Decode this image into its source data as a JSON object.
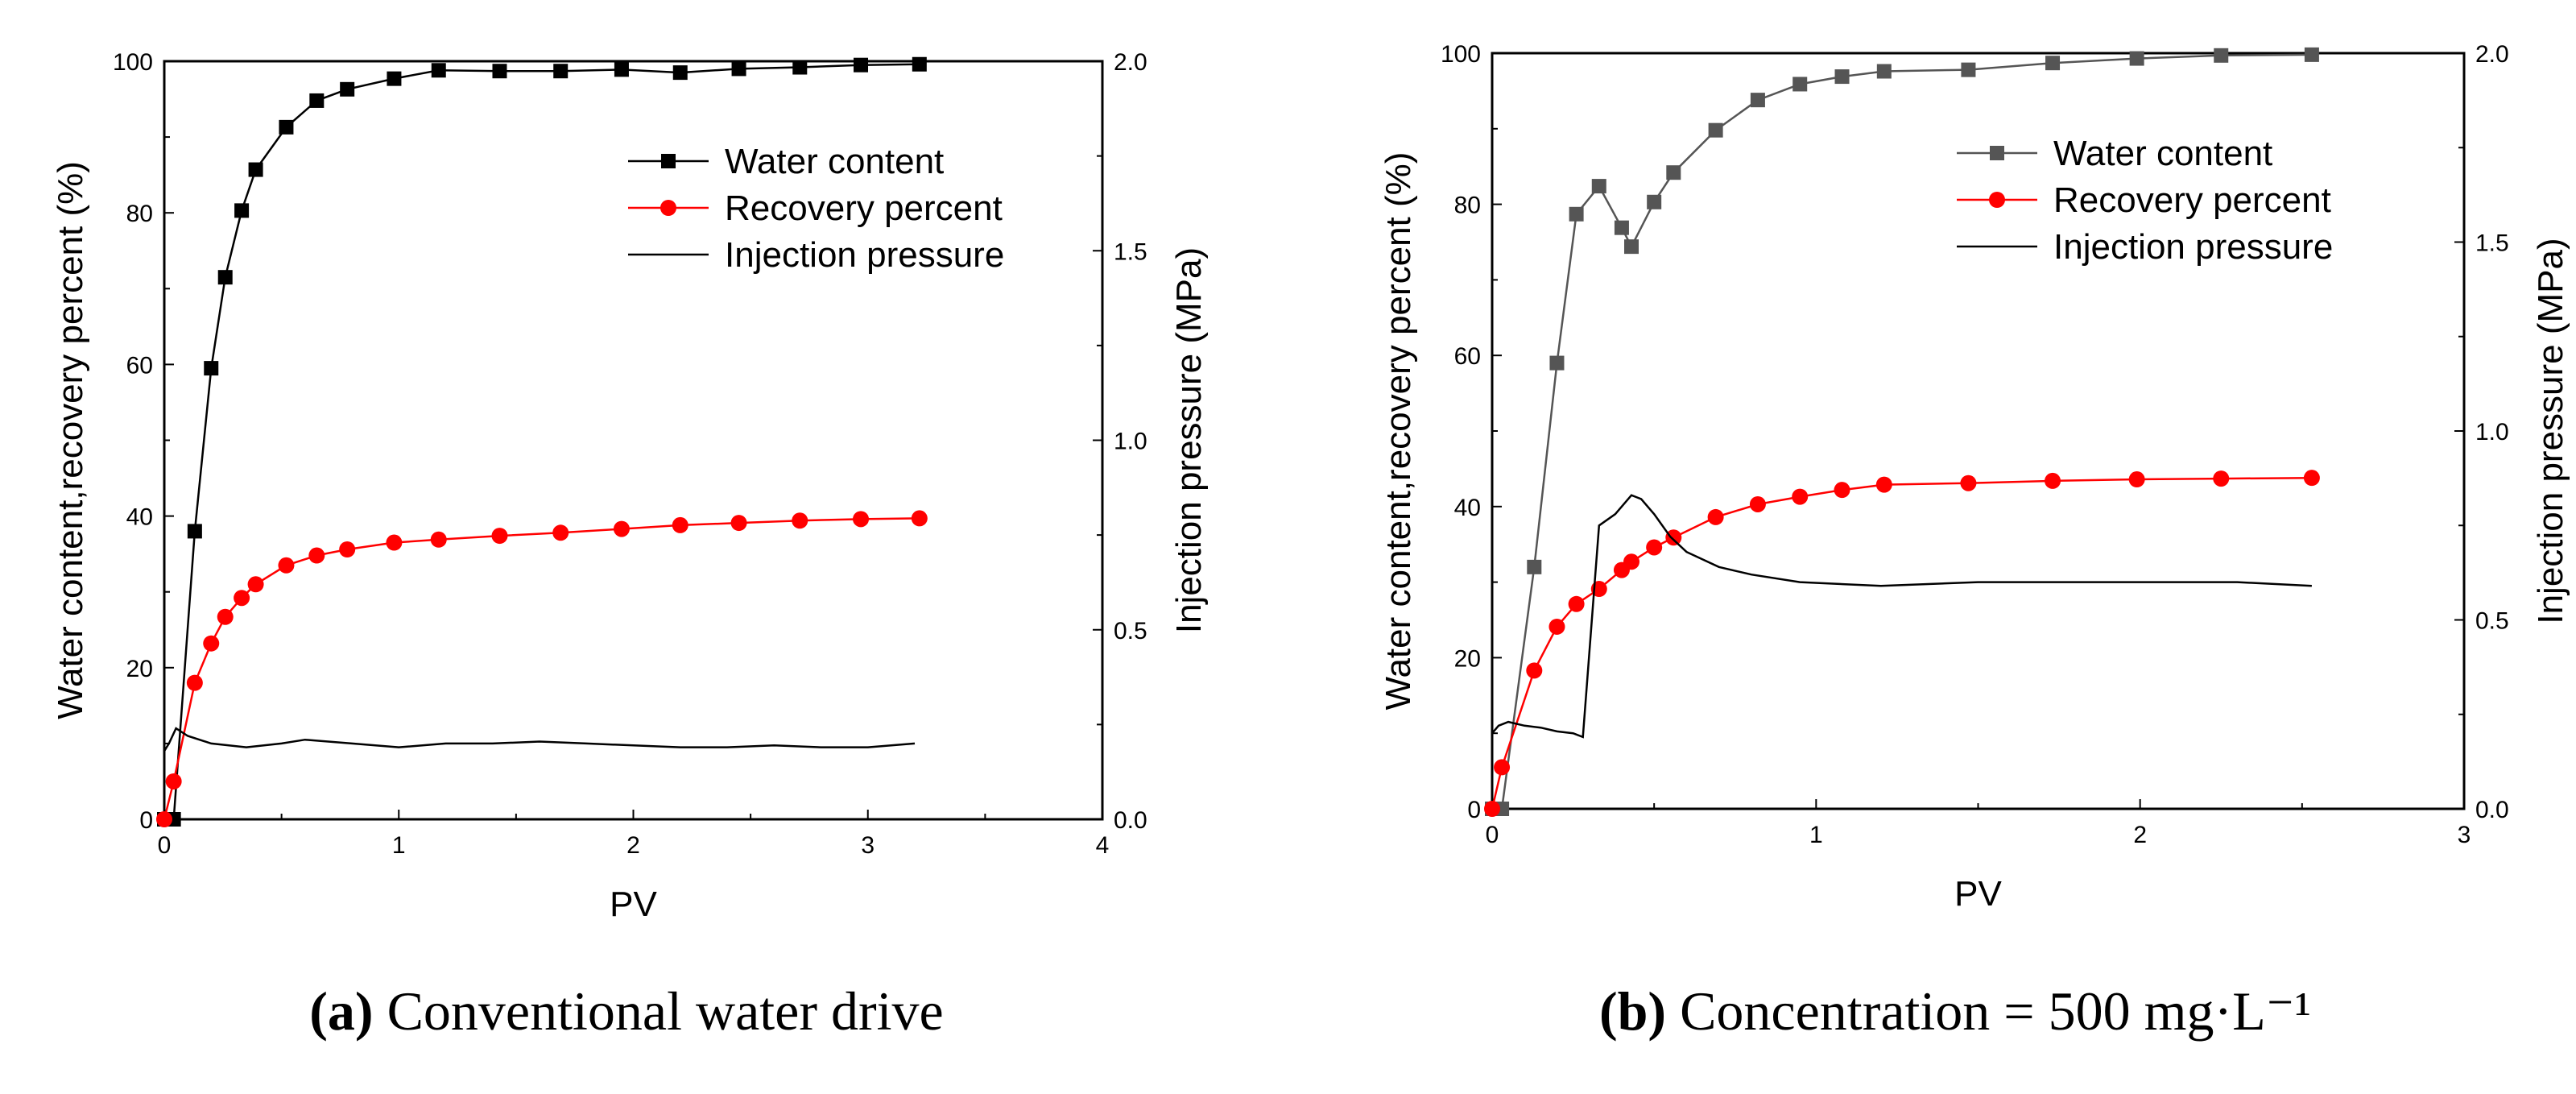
{
  "figure": {
    "panels": [
      {
        "caption_tag": "(a)",
        "caption_text": "Conventional water drive"
      },
      {
        "caption_tag": "(b)",
        "caption_text": "Concentration = 500 mg·L⁻¹"
      }
    ]
  },
  "chart_data": [
    {
      "type": "line",
      "panel": "(a)",
      "title": "Conventional water drive",
      "xlabel": "PV",
      "ylabel": "Water content,recovery percent (%)",
      "y2label": "Injection pressure (MPa)",
      "xlim": [
        0,
        4
      ],
      "ylim": [
        0,
        100
      ],
      "y2lim": [
        0,
        2.0
      ],
      "xticks": [
        "0",
        "1",
        "2",
        "3",
        "4"
      ],
      "yticks": [
        "0",
        "20",
        "40",
        "60",
        "80",
        "100"
      ],
      "y2ticks": [
        "0.0",
        "0.5",
        "1.0",
        "1.5",
        "2.0"
      ],
      "legend_position": "top-right",
      "series": [
        {
          "name": "Water content",
          "color": "#000000",
          "marker": "square",
          "axis": "left",
          "x": [
            0.0,
            0.04,
            0.13,
            0.2,
            0.26,
            0.33,
            0.39,
            0.52,
            0.65,
            0.78,
            0.98,
            1.17,
            1.43,
            1.69,
            1.95,
            2.2,
            2.45,
            2.71,
            2.97,
            3.22
          ],
          "y": [
            0,
            0,
            38,
            59.5,
            71.5,
            80.3,
            85.7,
            91.3,
            94.8,
            96.3,
            97.7,
            98.8,
            98.7,
            98.7,
            98.9,
            98.5,
            99.0,
            99.2,
            99.5,
            99.6
          ]
        },
        {
          "name": "Recovery percent",
          "color": "#ff0000",
          "marker": "circle",
          "axis": "left",
          "x": [
            0.0,
            0.04,
            0.13,
            0.2,
            0.26,
            0.33,
            0.39,
            0.52,
            0.65,
            0.78,
            0.98,
            1.17,
            1.43,
            1.69,
            1.95,
            2.2,
            2.45,
            2.71,
            2.97,
            3.22
          ],
          "y": [
            0,
            5,
            18,
            23.2,
            26.7,
            29.2,
            31,
            33.5,
            34.8,
            35.6,
            36.5,
            36.9,
            37.4,
            37.8,
            38.3,
            38.8,
            39.1,
            39.4,
            39.6,
            39.7
          ]
        },
        {
          "name": "Injection pressure",
          "color": "#000000",
          "marker": "none",
          "axis": "right",
          "x": [
            0.0,
            0.02,
            0.05,
            0.1,
            0.2,
            0.35,
            0.5,
            0.6,
            0.8,
            1.0,
            1.2,
            1.4,
            1.6,
            1.8,
            2.0,
            2.2,
            2.4,
            2.6,
            2.8,
            3.0,
            3.2
          ],
          "y": [
            0.18,
            0.2,
            0.24,
            0.22,
            0.2,
            0.19,
            0.2,
            0.21,
            0.2,
            0.19,
            0.2,
            0.2,
            0.205,
            0.2,
            0.195,
            0.19,
            0.19,
            0.195,
            0.19,
            0.19,
            0.2
          ]
        }
      ]
    },
    {
      "type": "line",
      "panel": "(b)",
      "title": "Concentration = 500 mg·L⁻¹",
      "xlabel": "PV",
      "ylabel": "Water content,recovery percent (%)",
      "y2label": "Injection pressure (MPa)",
      "xlim": [
        0,
        3
      ],
      "ylim": [
        0,
        100
      ],
      "y2lim": [
        0,
        2.0
      ],
      "xticks": [
        "0",
        "1",
        "2",
        "3"
      ],
      "yticks": [
        "0",
        "20",
        "40",
        "60",
        "80",
        "100"
      ],
      "y2ticks": [
        "0.0",
        "0.5",
        "1.0",
        "1.5",
        "2.0"
      ],
      "legend_position": "top-right",
      "series": [
        {
          "name": "Water content",
          "color": "#555555",
          "marker": "square",
          "axis": "left",
          "x": [
            0.0,
            0.03,
            0.13,
            0.2,
            0.26,
            0.33,
            0.4,
            0.43,
            0.5,
            0.56,
            0.69,
            0.82,
            0.95,
            1.08,
            1.21,
            1.47,
            1.73,
            1.99,
            2.25,
            2.53
          ],
          "y": [
            0,
            0,
            32,
            59,
            78.7,
            82.4,
            76.9,
            74.4,
            80.3,
            84.2,
            89.8,
            93.8,
            95.9,
            96.9,
            97.6,
            97.8,
            98.7,
            99.3,
            99.7,
            99.8
          ]
        },
        {
          "name": "Recovery percent",
          "color": "#ff0000",
          "marker": "circle",
          "axis": "left",
          "x": [
            0.0,
            0.03,
            0.13,
            0.2,
            0.26,
            0.33,
            0.4,
            0.43,
            0.5,
            0.56,
            0.69,
            0.82,
            0.95,
            1.08,
            1.21,
            1.47,
            1.73,
            1.99,
            2.25,
            2.53
          ],
          "y": [
            0,
            5.5,
            18.3,
            24.1,
            27.1,
            29.1,
            31.6,
            32.7,
            34.6,
            35.9,
            38.6,
            40.3,
            41.3,
            42.2,
            42.9,
            43.1,
            43.4,
            43.6,
            43.7,
            43.8
          ]
        },
        {
          "name": "Injection pressure",
          "color": "#000000",
          "marker": "none",
          "axis": "right",
          "x": [
            0.0,
            0.02,
            0.05,
            0.1,
            0.15,
            0.2,
            0.25,
            0.28,
            0.33,
            0.38,
            0.43,
            0.46,
            0.5,
            0.55,
            0.6,
            0.7,
            0.8,
            0.95,
            1.2,
            1.5,
            1.8,
            2.1,
            2.3,
            2.53
          ],
          "y": [
            0.2,
            0.22,
            0.23,
            0.22,
            0.215,
            0.205,
            0.2,
            0.19,
            0.75,
            0.78,
            0.83,
            0.82,
            0.78,
            0.72,
            0.68,
            0.64,
            0.62,
            0.6,
            0.59,
            0.6,
            0.6,
            0.6,
            0.6,
            0.59
          ]
        }
      ]
    }
  ]
}
